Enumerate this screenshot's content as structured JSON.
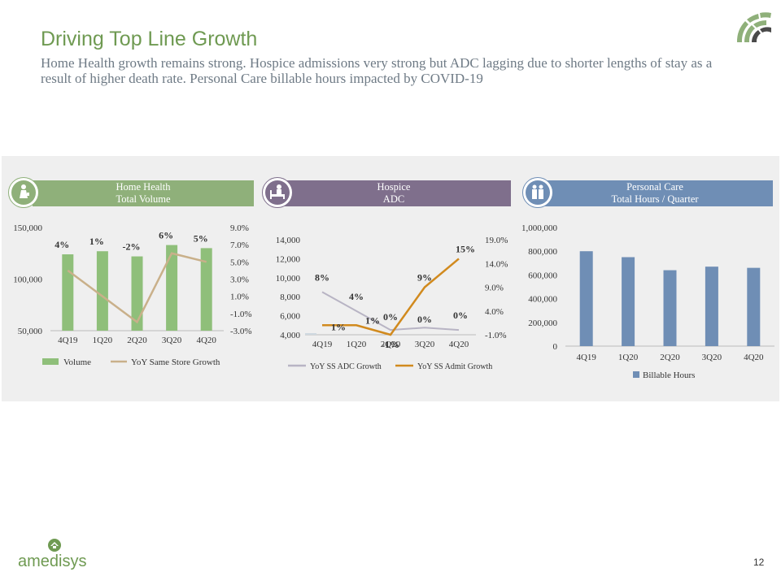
{
  "header": {
    "title": "Driving Top Line Growth",
    "subtitle": "Home Health growth remains strong. Hospice admissions very strong but ADC lagging due to shorter lengths of stay as a result of higher death rate. Personal Care billable hours impacted by COVID-19"
  },
  "panels": [
    {
      "label_line1": "Home Health",
      "label_line2": "Total Volume",
      "color": "#8fb07a",
      "icon": "nurse-icon"
    },
    {
      "label_line1": "Hospice",
      "label_line2": "ADC",
      "color": "#7f6f8c",
      "icon": "patient-bed-icon"
    },
    {
      "label_line1": "Personal Care",
      "label_line2": "Total Hours / Quarter",
      "color": "#6f8eb5",
      "icon": "caregiver-icon"
    }
  ],
  "chart_data": [
    {
      "type": "bar",
      "categories": [
        "4Q19",
        "1Q20",
        "2Q20",
        "3Q20",
        "4Q20"
      ],
      "ylim": [
        50000,
        150000
      ],
      "yticks": [
        "50,000",
        "100,000",
        "150,000"
      ],
      "y2lim": [
        -3.0,
        9.0
      ],
      "y2ticks": [
        "-3.0%",
        "-1.0%",
        "1.0%",
        "3.0%",
        "5.0%",
        "7.0%",
        "9.0%"
      ],
      "series": [
        {
          "name": "Volume",
          "type": "bar",
          "color": "#8fbf7a",
          "values": [
            124000,
            127000,
            122000,
            133000,
            130000
          ]
        },
        {
          "name": "YoY Same Store Growth",
          "type": "line",
          "axis": "secondary",
          "color": "#c9b08a",
          "values": [
            4.0,
            1.0,
            -2.0,
            6.0,
            5.0
          ]
        }
      ],
      "data_labels": [
        "4%",
        "1%",
        "-2%",
        "6%",
        "5%"
      ]
    },
    {
      "type": "line",
      "categories": [
        "4Q19",
        "1Q20",
        "2Q20",
        "3Q20",
        "4Q20"
      ],
      "ylim": [
        4000,
        14000
      ],
      "yticks": [
        "4,000",
        "6,000",
        "8,000",
        "10,000",
        "12,000",
        "14,000"
      ],
      "y2lim": [
        -1.0,
        19.0
      ],
      "y2ticks": [
        "-1.0%",
        "4.0%",
        "9.0%",
        "14.0%",
        "19.0%"
      ],
      "series": [
        {
          "name": "YoY SS ADC Growth",
          "color": "#b8b4c4",
          "values": [
            8,
            4,
            0,
            0.5,
            0
          ],
          "labels": [
            "8%",
            "4%",
            "0%",
            "0%",
            "0%"
          ]
        },
        {
          "name": "YoY SS Admit Growth",
          "color": "#d18a1e",
          "values": [
            1,
            1,
            -1,
            9,
            15
          ],
          "labels": [
            "1%",
            "1%",
            "-1%",
            "9%",
            "15%"
          ]
        }
      ]
    },
    {
      "type": "bar",
      "categories": [
        "4Q19",
        "1Q20",
        "2Q20",
        "3Q20",
        "4Q20"
      ],
      "ylim": [
        0,
        1000000
      ],
      "yticks": [
        "0",
        "200,000",
        "400,000",
        "600,000",
        "800,000",
        "1,000,000"
      ],
      "series": [
        {
          "name": "Billable Hours",
          "color": "#6f8eb5",
          "values": [
            800000,
            750000,
            640000,
            670000,
            660000
          ]
        }
      ]
    }
  ],
  "footer": {
    "brand": "amedisys",
    "page_number": "12"
  }
}
